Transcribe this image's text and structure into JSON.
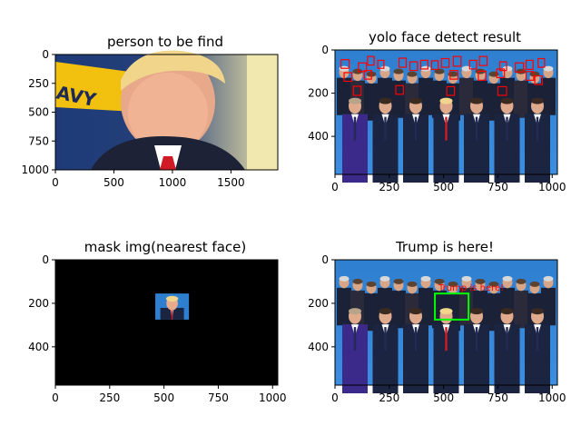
{
  "chart_data": [
    {
      "type": "image",
      "title": "person to be find",
      "xlim": [
        0,
        1900
      ],
      "ylim": [
        1000,
        0
      ],
      "xticks": [
        0,
        500,
        1000,
        1500
      ],
      "yticks": [
        0,
        250,
        500,
        750,
        1000
      ],
      "image_content": "close-up portrait with navy flag background"
    },
    {
      "type": "image",
      "title": "yolo face detect result",
      "xlim": [
        0,
        1024
      ],
      "ylim": [
        576,
        0
      ],
      "xticks": [
        0,
        250,
        500,
        750,
        1000
      ],
      "yticks": [
        0,
        200,
        400
      ],
      "box_color": "#ff0000",
      "boxes": [
        [
          28,
          45,
          65,
          85
        ],
        [
          108,
          60,
          145,
          100
        ],
        [
          150,
          30,
          180,
          70
        ],
        [
          197,
          48,
          225,
          85
        ],
        [
          295,
          38,
          328,
          80
        ],
        [
          345,
          55,
          380,
          95
        ],
        [
          395,
          48,
          428,
          88
        ],
        [
          445,
          50,
          475,
          90
        ],
        [
          490,
          40,
          525,
          80
        ],
        [
          545,
          30,
          580,
          75
        ],
        [
          620,
          48,
          652,
          88
        ],
        [
          665,
          30,
          700,
          72
        ],
        [
          758,
          55,
          790,
          95
        ],
        [
          830,
          60,
          868,
          102
        ],
        [
          880,
          48,
          912,
          90
        ],
        [
          935,
          40,
          965,
          80
        ],
        [
          42,
          105,
          78,
          145
        ],
        [
          135,
          95,
          168,
          135
        ],
        [
          530,
          95,
          565,
          135
        ],
        [
          660,
          98,
          695,
          140
        ],
        [
          745,
          88,
          780,
          128
        ],
        [
          880,
          100,
          915,
          140
        ],
        [
          920,
          120,
          955,
          160
        ],
        [
          85,
          168,
          120,
          210
        ],
        [
          280,
          165,
          315,
          205
        ],
        [
          515,
          170,
          550,
          210
        ],
        [
          750,
          170,
          790,
          210
        ]
      ]
    },
    {
      "type": "image",
      "title": "mask img(nearest face)",
      "xlim": [
        0,
        1024
      ],
      "ylim": [
        576,
        0
      ],
      "xticks": [
        0,
        250,
        500,
        750,
        1000
      ],
      "yticks": [
        0,
        200,
        400
      ],
      "mask_region": [
        460,
        155,
        615,
        275
      ]
    },
    {
      "type": "image",
      "title": "Trump is here!",
      "xlim": [
        0,
        1024
      ],
      "ylim": [
        576,
        0
      ],
      "xticks": [
        0,
        250,
        500,
        750,
        1000
      ],
      "yticks": [
        0,
        200,
        400
      ],
      "highlight_box": [
        460,
        155,
        615,
        275
      ],
      "highlight_color": "#00ff00",
      "annotation": "Trump is here!",
      "annotation_color": "#ff0000"
    }
  ]
}
